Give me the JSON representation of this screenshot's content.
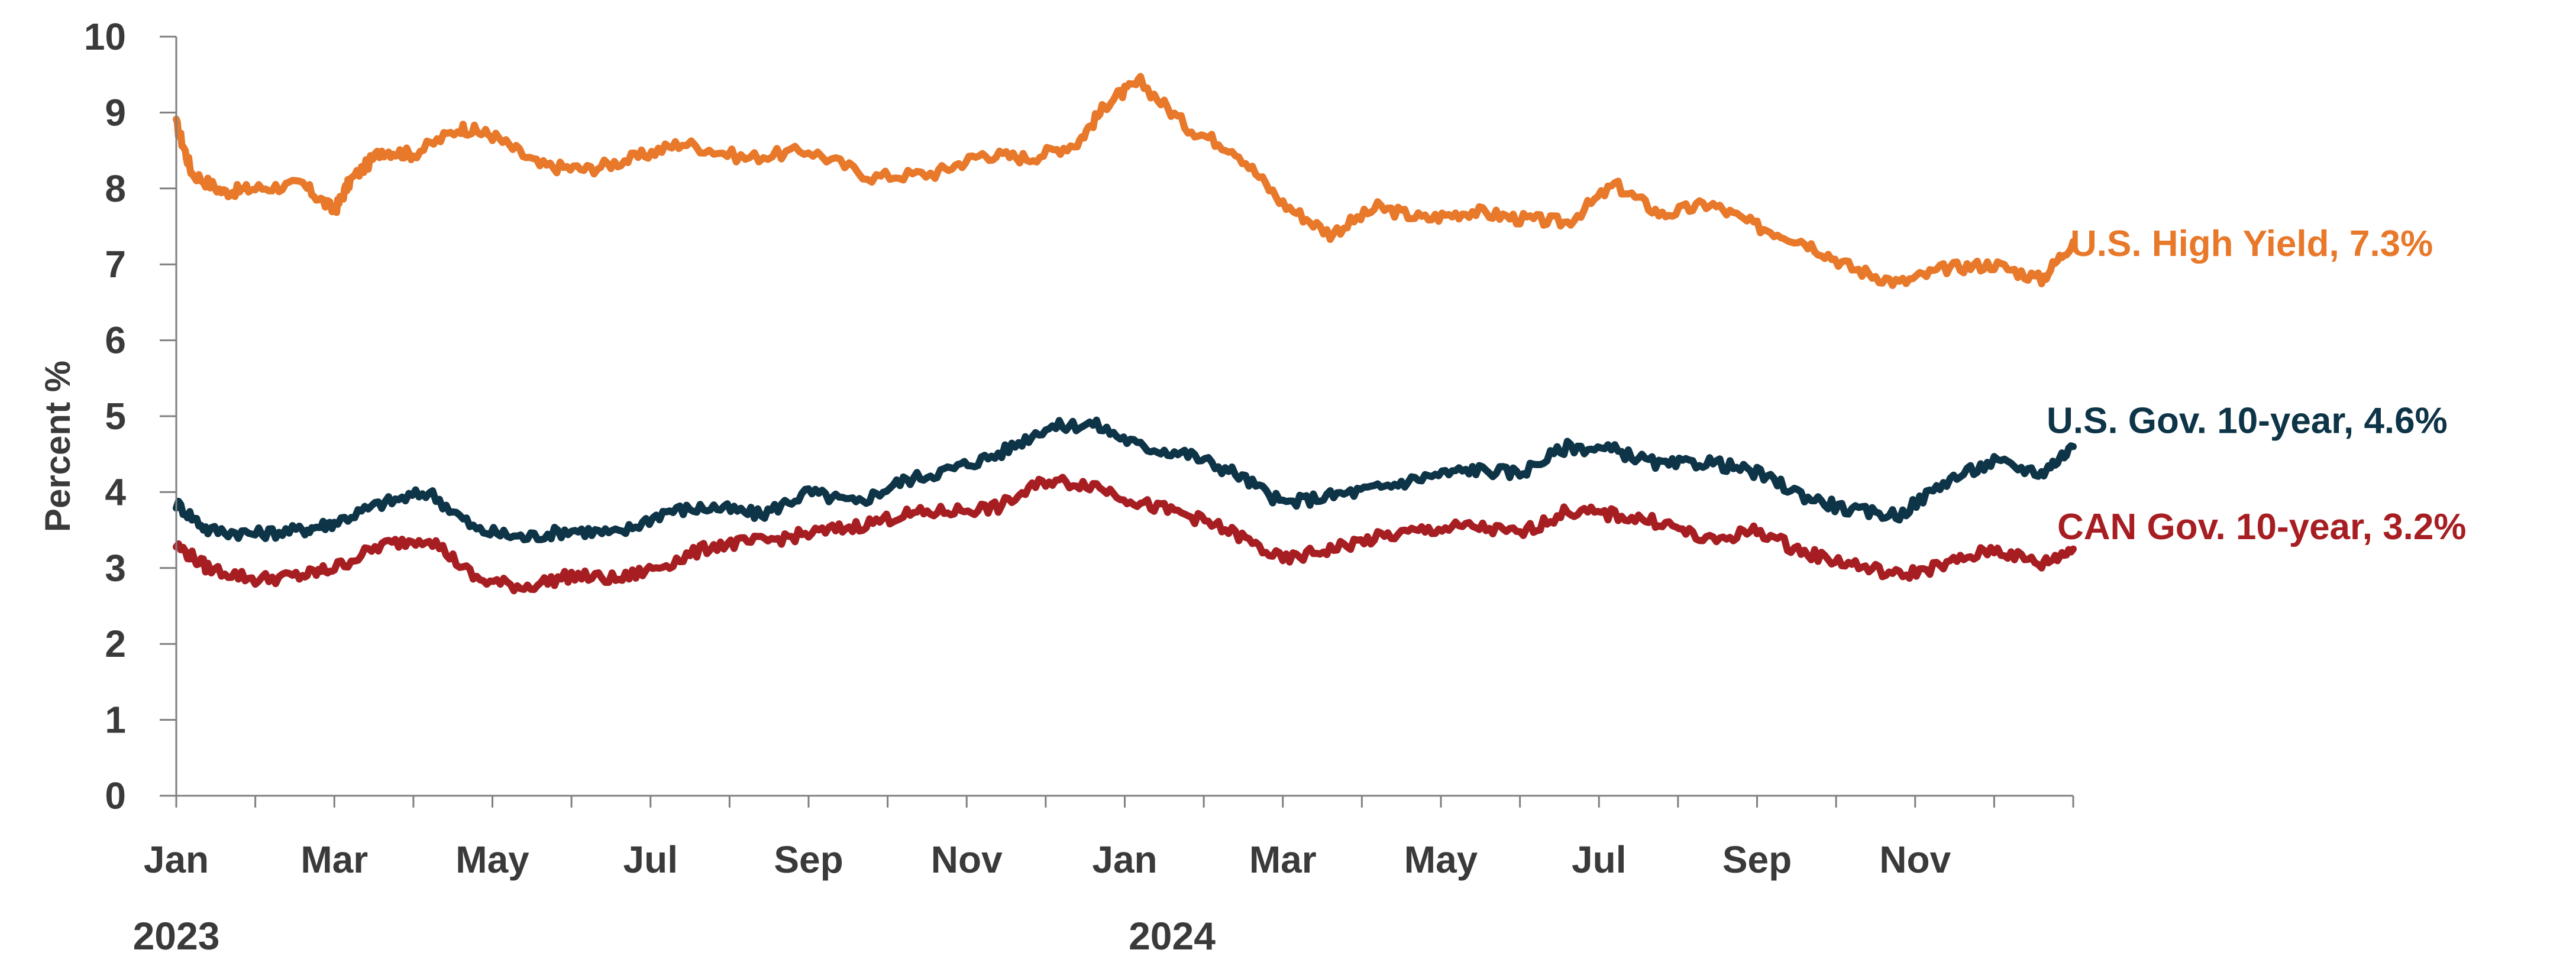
{
  "chart_data": {
    "type": "line",
    "title": "",
    "xlabel": "",
    "ylabel": "Percent  %",
    "ylim": [
      0,
      10
    ],
    "yticks": [
      "0",
      "1",
      "2",
      "3",
      "4",
      "5",
      "6",
      "7",
      "8",
      "9",
      "10"
    ],
    "x_range": [
      "2023-01",
      "2024-12"
    ],
    "xticks": [
      "Jan",
      "Mar",
      "May",
      "Jul",
      "Sep",
      "Nov",
      "Jan",
      "Mar",
      "May",
      "Jul",
      "Sep",
      "Nov"
    ],
    "years": [
      "2023",
      "2024"
    ],
    "grid": false,
    "legend": "inline-right",
    "series": [
      {
        "name": "U.S. High Yield",
        "label": "U.S. High Yield, 7.3%",
        "color": "#e8782a",
        "x": [
          0,
          0.1,
          0.3,
          0.5,
          0.8,
          1.0,
          1.1,
          1.3,
          1.5,
          1.8,
          2.0,
          2.3,
          2.6,
          2.9,
          3.2,
          3.6,
          4.0,
          4.4,
          4.8,
          5.1,
          5.4,
          5.7,
          5.9,
          6.1,
          6.4,
          6.7,
          7.0,
          7.3,
          7.6,
          7.9,
          8.2,
          8.5,
          8.8,
          9.1,
          9.4,
          9.7,
          10.0,
          10.3,
          10.6,
          10.9,
          11.2,
          11.5,
          11.8,
          12.0
        ],
        "values": [
          8.85,
          8.2,
          7.95,
          8.0,
          8.05,
          7.7,
          8.1,
          8.5,
          8.45,
          8.8,
          8.7,
          8.3,
          8.25,
          8.4,
          8.6,
          8.4,
          8.5,
          8.15,
          8.2,
          8.45,
          8.4,
          8.6,
          9.15,
          9.4,
          8.8,
          8.5,
          7.8,
          7.4,
          7.75,
          7.6,
          7.7,
          7.6,
          7.55,
          8.05,
          7.65,
          7.8,
          7.5,
          7.3,
          6.95,
          6.75,
          6.95,
          7.0,
          6.8,
          7.3
        ]
      },
      {
        "name": "U.S. Gov. 10-year",
        "label": "U.S. Gov. 10-year, 4.6%",
        "color": "#0e3447",
        "x": [
          0,
          0.2,
          0.5,
          0.8,
          1.0,
          1.3,
          1.6,
          1.9,
          2.2,
          2.5,
          2.8,
          3.1,
          3.4,
          3.7,
          4.0,
          4.3,
          4.6,
          4.9,
          5.2,
          5.5,
          5.8,
          6.1,
          6.4,
          6.7,
          7.0,
          7.3,
          7.6,
          7.9,
          8.2,
          8.5,
          8.8,
          9.1,
          9.4,
          9.7,
          10.0,
          10.3,
          10.6,
          10.9,
          11.2,
          11.5,
          11.8,
          12.0
        ],
        "values": [
          3.85,
          3.5,
          3.45,
          3.5,
          3.6,
          3.85,
          4.0,
          3.5,
          3.4,
          3.5,
          3.45,
          3.75,
          3.8,
          3.7,
          4.0,
          3.85,
          4.15,
          4.3,
          4.5,
          4.85,
          4.9,
          4.6,
          4.5,
          4.25,
          3.85,
          3.95,
          4.05,
          4.2,
          4.3,
          4.25,
          4.6,
          4.55,
          4.35,
          4.4,
          4.25,
          3.95,
          3.75,
          3.7,
          4.15,
          4.4,
          4.25,
          4.6
        ]
      },
      {
        "name": "CAN Gov. 10-year",
        "label": "CAN Gov. 10-year, 3.2%",
        "color": "#a71e22",
        "x": [
          0,
          0.2,
          0.5,
          0.8,
          1.0,
          1.3,
          1.6,
          1.9,
          2.2,
          2.5,
          2.8,
          3.1,
          3.4,
          3.7,
          4.0,
          4.3,
          4.6,
          4.9,
          5.2,
          5.5,
          5.8,
          6.1,
          6.4,
          6.7,
          7.0,
          7.3,
          7.6,
          7.9,
          8.2,
          8.5,
          8.8,
          9.1,
          9.4,
          9.7,
          10.0,
          10.3,
          10.6,
          10.9,
          11.2,
          11.5,
          11.8,
          12.0
        ],
        "values": [
          3.3,
          3.0,
          2.85,
          2.9,
          3.0,
          3.3,
          3.4,
          2.85,
          2.75,
          2.9,
          2.85,
          3.05,
          3.3,
          3.35,
          3.45,
          3.55,
          3.7,
          3.75,
          3.8,
          4.15,
          4.1,
          3.85,
          3.7,
          3.45,
          3.1,
          3.25,
          3.4,
          3.5,
          3.55,
          3.45,
          3.75,
          3.7,
          3.6,
          3.35,
          3.5,
          3.2,
          3.05,
          2.9,
          3.05,
          3.25,
          3.05,
          3.25
        ]
      }
    ]
  }
}
